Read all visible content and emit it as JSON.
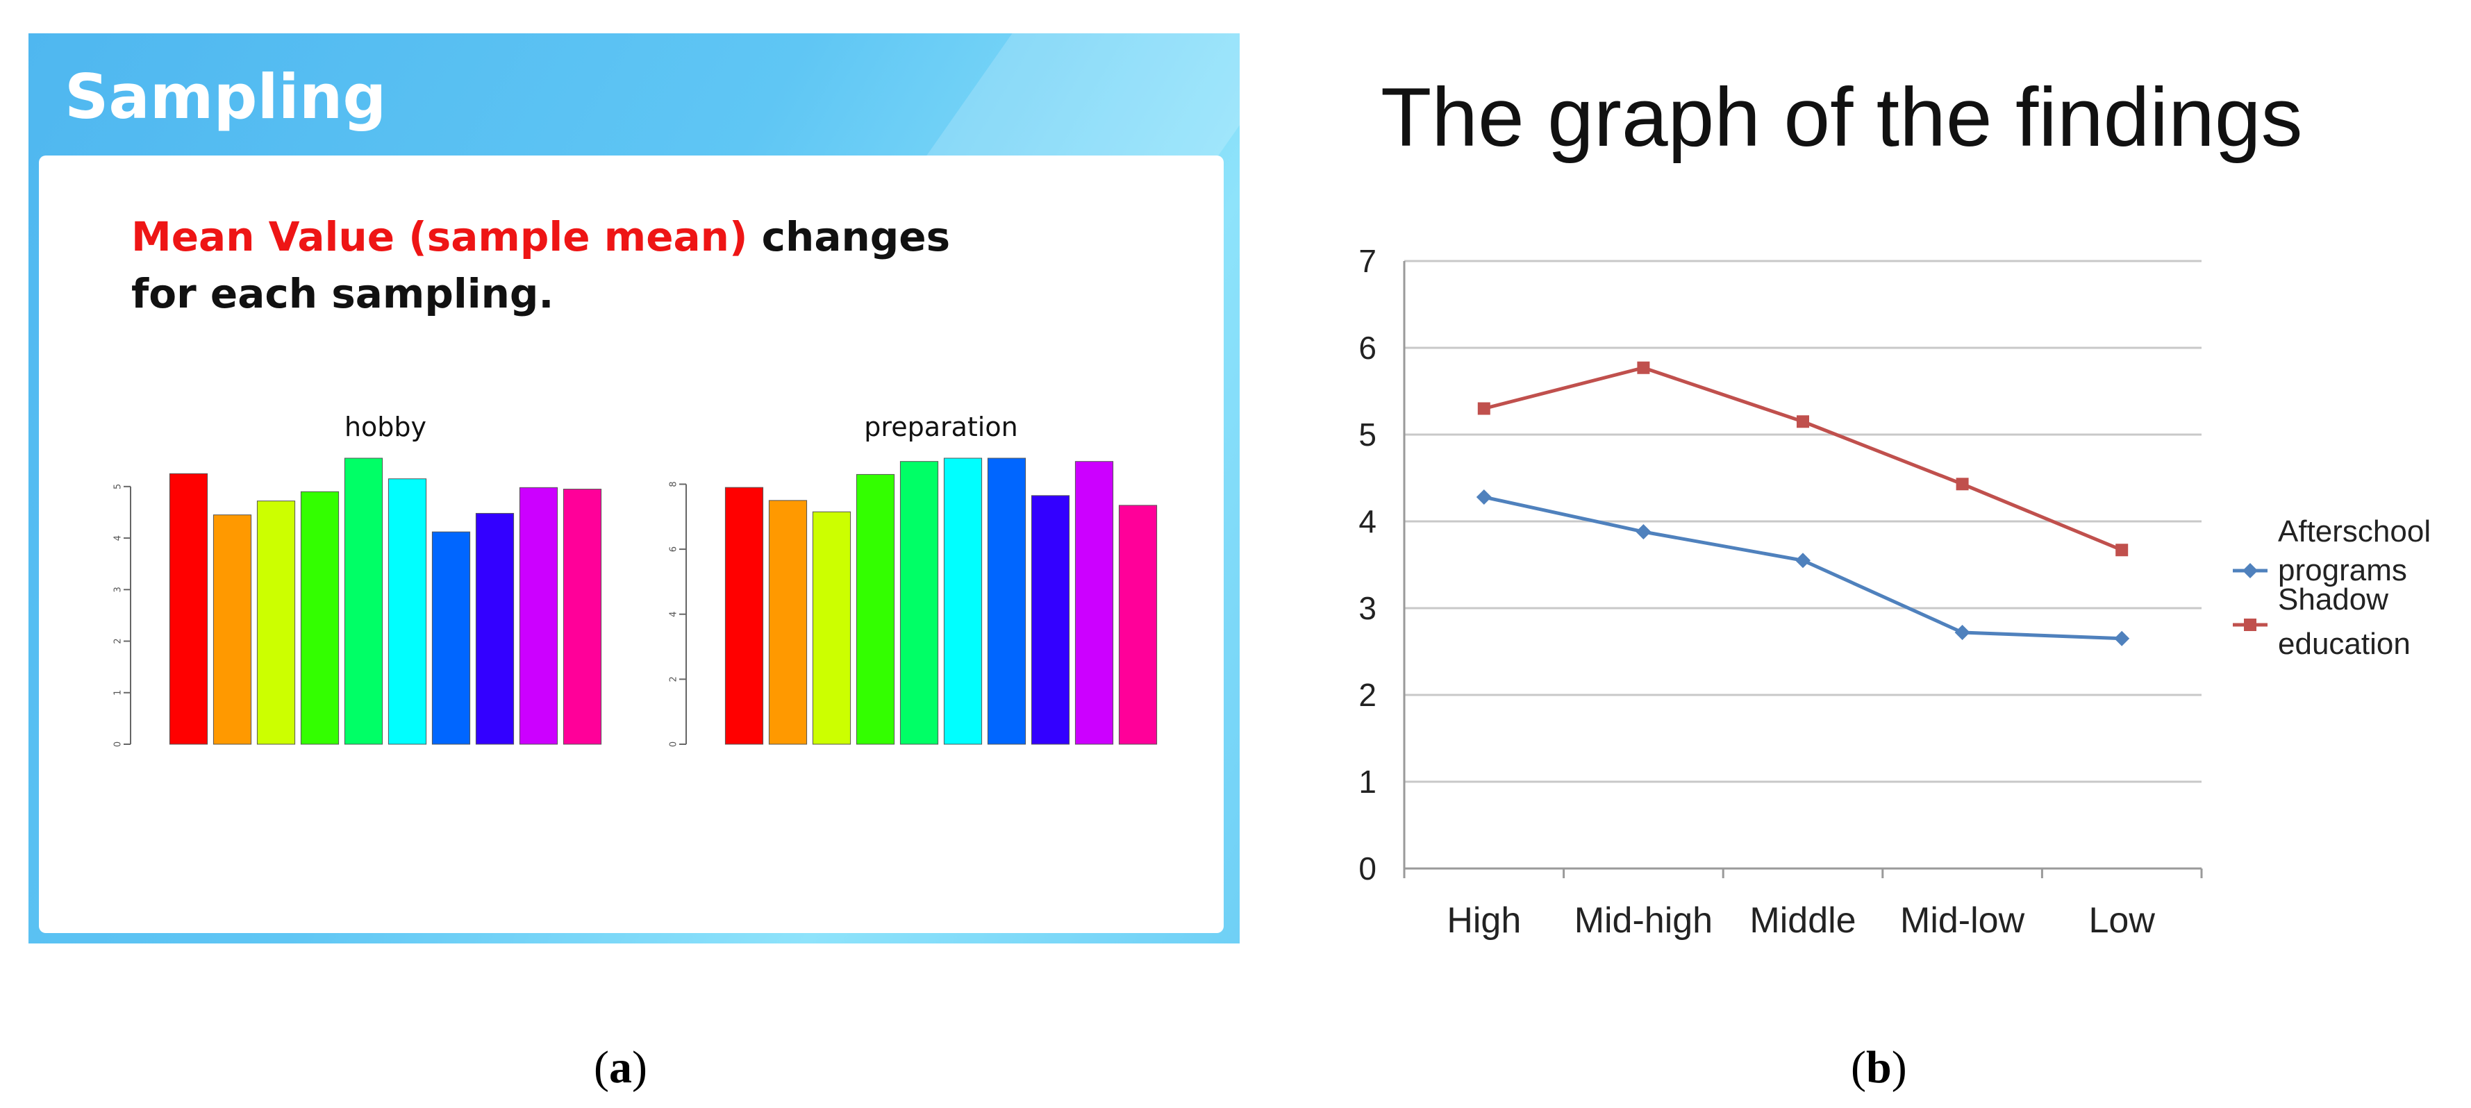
{
  "panel_a": {
    "title": "Sampling",
    "text_red": "Mean Value (sample mean)",
    "text_black_1": " changes",
    "text_black_2": "for each sampling."
  },
  "chart_data": [
    {
      "type": "bar",
      "title": "hobby",
      "categories": [
        "1",
        "2",
        "3",
        "4",
        "5",
        "6",
        "7",
        "8",
        "9",
        "10"
      ],
      "values": [
        5.25,
        4.45,
        4.72,
        4.9,
        5.55,
        5.15,
        4.12,
        4.48,
        4.98,
        4.95
      ],
      "ylim": [
        0,
        5.55
      ],
      "yticks": [
        0,
        1,
        2,
        3,
        4,
        5
      ],
      "colors": [
        "#ff0000",
        "#ff9900",
        "#ccff00",
        "#33ff00",
        "#00ff66",
        "#00ffff",
        "#0066ff",
        "#3300ff",
        "#cc00ff",
        "#ff0099"
      ]
    },
    {
      "type": "bar",
      "title": "preparation",
      "categories": [
        "1",
        "2",
        "3",
        "4",
        "5",
        "6",
        "7",
        "8",
        "9",
        "10"
      ],
      "values": [
        7.9,
        7.5,
        7.15,
        8.3,
        8.7,
        8.8,
        8.8,
        7.65,
        8.7,
        7.35
      ],
      "ylim": [
        0,
        8.8
      ],
      "yticks": [
        0,
        2,
        4,
        6,
        8
      ],
      "colors": [
        "#ff0000",
        "#ff9900",
        "#ccff00",
        "#33ff00",
        "#00ff66",
        "#00ffff",
        "#0066ff",
        "#3300ff",
        "#cc00ff",
        "#ff0099"
      ]
    },
    {
      "type": "line",
      "title": "The graph of the findings",
      "categories": [
        "High",
        "Mid-high",
        "Middle",
        "Mid-low",
        "Low"
      ],
      "ylim": [
        0,
        7
      ],
      "yticks": [
        0,
        1,
        2,
        3,
        4,
        5,
        6,
        7
      ],
      "series": [
        {
          "name_line1": "Afterschool",
          "name_line2": "programs",
          "values": [
            4.28,
            3.88,
            3.55,
            2.72,
            2.65
          ],
          "color": "#4f81bd",
          "marker": "diamond"
        },
        {
          "name_line1": "Shadow",
          "name_line2": "education",
          "values": [
            5.3,
            5.77,
            5.15,
            4.43,
            3.67
          ],
          "color": "#c0504d",
          "marker": "square"
        }
      ],
      "grid": true,
      "legend": "right"
    }
  ],
  "captions": {
    "a_open": "(",
    "a_letter": "a",
    "a_close": ")",
    "b_open": "(",
    "b_letter": "b",
    "b_close": ")"
  }
}
